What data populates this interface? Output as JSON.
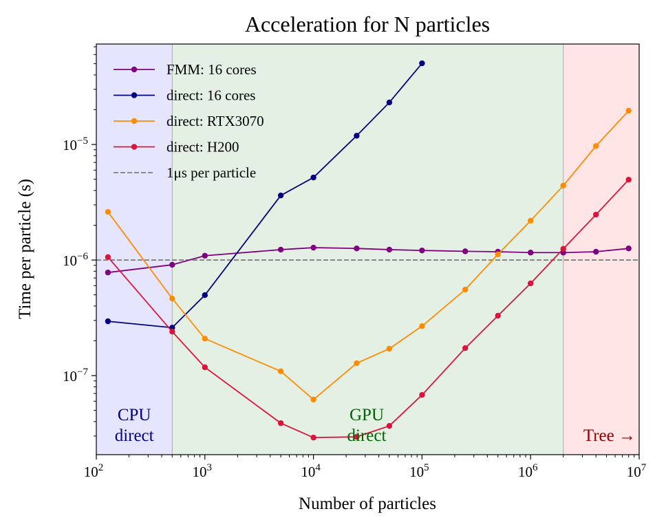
{
  "chart_data": {
    "type": "line",
    "title": "Acceleration for N particles",
    "xlabel": "Number of particles",
    "ylabel": "Time per particle (s)",
    "xscale": "log",
    "yscale": "log",
    "xlim": [
      100,
      10000000
    ],
    "ylim": [
      2.07e-08,
      7.4e-05
    ],
    "x_ticks": [
      {
        "value": 100,
        "base": "10",
        "exp": "2"
      },
      {
        "value": 1000,
        "base": "10",
        "exp": "3"
      },
      {
        "value": 10000,
        "base": "10",
        "exp": "4"
      },
      {
        "value": 100000,
        "base": "10",
        "exp": "5"
      },
      {
        "value": 1000000,
        "base": "10",
        "exp": "6"
      },
      {
        "value": 10000000,
        "base": "10",
        "exp": "7"
      }
    ],
    "y_ticks": [
      {
        "value": 1e-07,
        "base": "10",
        "exp": "−7"
      },
      {
        "value": 1e-06,
        "base": "10",
        "exp": "−6"
      },
      {
        "value": 1e-05,
        "base": "10",
        "exp": "−5"
      }
    ],
    "grid": false,
    "legend_position": "top-left",
    "regions": [
      {
        "from": 100,
        "to": 500,
        "color": "#e5e5fd",
        "label_lines": [
          "CPU",
          "direct"
        ],
        "label_color": "#000080",
        "label_position": "bottom-center"
      },
      {
        "from": 500,
        "to": 2000000,
        "color": "#e5f0e5",
        "label_lines": [
          "GPU",
          "direct"
        ],
        "label_color": "#006400",
        "label_position": "bottom-center"
      },
      {
        "from": 2000000,
        "to": 10000000,
        "color": "#ffe5e5",
        "label_lines": [
          "Tree →"
        ],
        "label_color": "#8b0000",
        "label_position": "bottom-right"
      }
    ],
    "reference_line": {
      "name": "1μs per particle",
      "y": 1e-06,
      "color": "#808080",
      "style": "dashed"
    },
    "series": [
      {
        "name": "FMM: 16 cores",
        "color": "#800080",
        "x": [
          128,
          500,
          1000,
          5000,
          10000,
          25000,
          50000,
          100000,
          250000,
          500000,
          1000000,
          2000000,
          4000000,
          8000000
        ],
        "y": [
          7.8e-07,
          9.1e-07,
          1.09e-06,
          1.23e-06,
          1.28e-06,
          1.26e-06,
          1.23e-06,
          1.21e-06,
          1.19e-06,
          1.18e-06,
          1.16e-06,
          1.16e-06,
          1.18e-06,
          1.26e-06
        ]
      },
      {
        "name": "direct: 16 cores",
        "color": "#000080",
        "x": [
          128,
          500,
          1000,
          5000,
          10000,
          25000,
          50000,
          100000
        ],
        "y": [
          2.95e-07,
          2.6e-07,
          4.97e-07,
          3.62e-06,
          5.18e-06,
          1.19e-05,
          2.31e-05,
          5.04e-05
        ]
      },
      {
        "name": "direct: RTX3070",
        "color": "#ff8c00",
        "x": [
          128,
          500,
          1000,
          5000,
          10000,
          25000,
          50000,
          100000,
          250000,
          500000,
          1000000,
          2000000,
          4000000,
          8000000
        ],
        "y": [
          2.61e-06,
          4.64e-07,
          2.09e-07,
          1.09e-07,
          6.2e-08,
          1.28e-07,
          1.71e-07,
          2.68e-07,
          5.55e-07,
          1.12e-06,
          2.19e-06,
          4.4e-06,
          9.7e-06,
          1.96e-05
        ]
      },
      {
        "name": "direct: H200",
        "color": "#dc143c",
        "x": [
          128,
          500,
          1000,
          5000,
          10000,
          25000,
          50000,
          100000,
          250000,
          500000,
          1000000,
          2000000,
          4000000,
          8000000
        ],
        "y": [
          1.06e-06,
          2.4e-07,
          1.18e-07,
          3.88e-08,
          2.91e-08,
          2.95e-08,
          3.67e-08,
          6.8e-08,
          1.73e-07,
          3.3e-07,
          6.28e-07,
          1.25e-06,
          2.47e-06,
          4.96e-06
        ]
      }
    ]
  }
}
